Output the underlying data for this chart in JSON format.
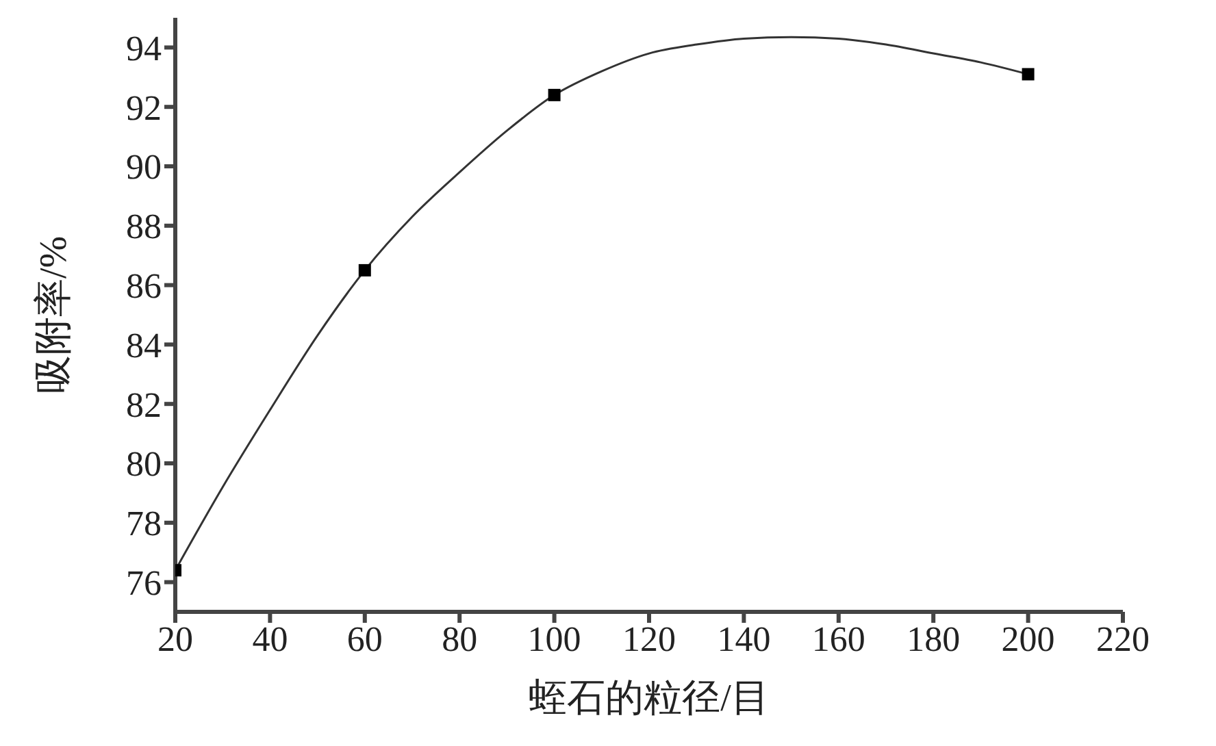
{
  "chart_data": {
    "type": "scatter",
    "xlabel": "蛭石的粒径/目",
    "ylabel": "吸附率/%",
    "marker": "square",
    "grid": false,
    "legend": false,
    "xlim": [
      20,
      220
    ],
    "xticks": [
      20,
      40,
      60,
      80,
      100,
      120,
      140,
      160,
      180,
      200,
      220
    ],
    "ylim": [
      75,
      95
    ],
    "yticks": [
      76,
      78,
      80,
      82,
      84,
      86,
      88,
      90,
      92,
      94
    ],
    "series": [
      {
        "color": "#000000",
        "x": [
          20,
          60,
          100,
          200
        ],
        "values": [
          76.4,
          86.5,
          92.4,
          93.1
        ]
      },
      {
        "type": "line",
        "color": "#333333",
        "marker": "none",
        "line_style": "solid",
        "x": [
          20,
          30,
          40,
          50,
          60,
          70,
          80,
          90,
          100,
          110,
          120,
          130,
          140,
          150,
          160,
          170,
          180,
          190,
          200
        ],
        "values": [
          76.4,
          79.2,
          81.8,
          84.3,
          86.5,
          88.3,
          89.8,
          91.2,
          92.4,
          93.2,
          93.8,
          94.1,
          94.3,
          94.35,
          94.3,
          94.1,
          93.8,
          93.5,
          93.1
        ]
      }
    ]
  }
}
